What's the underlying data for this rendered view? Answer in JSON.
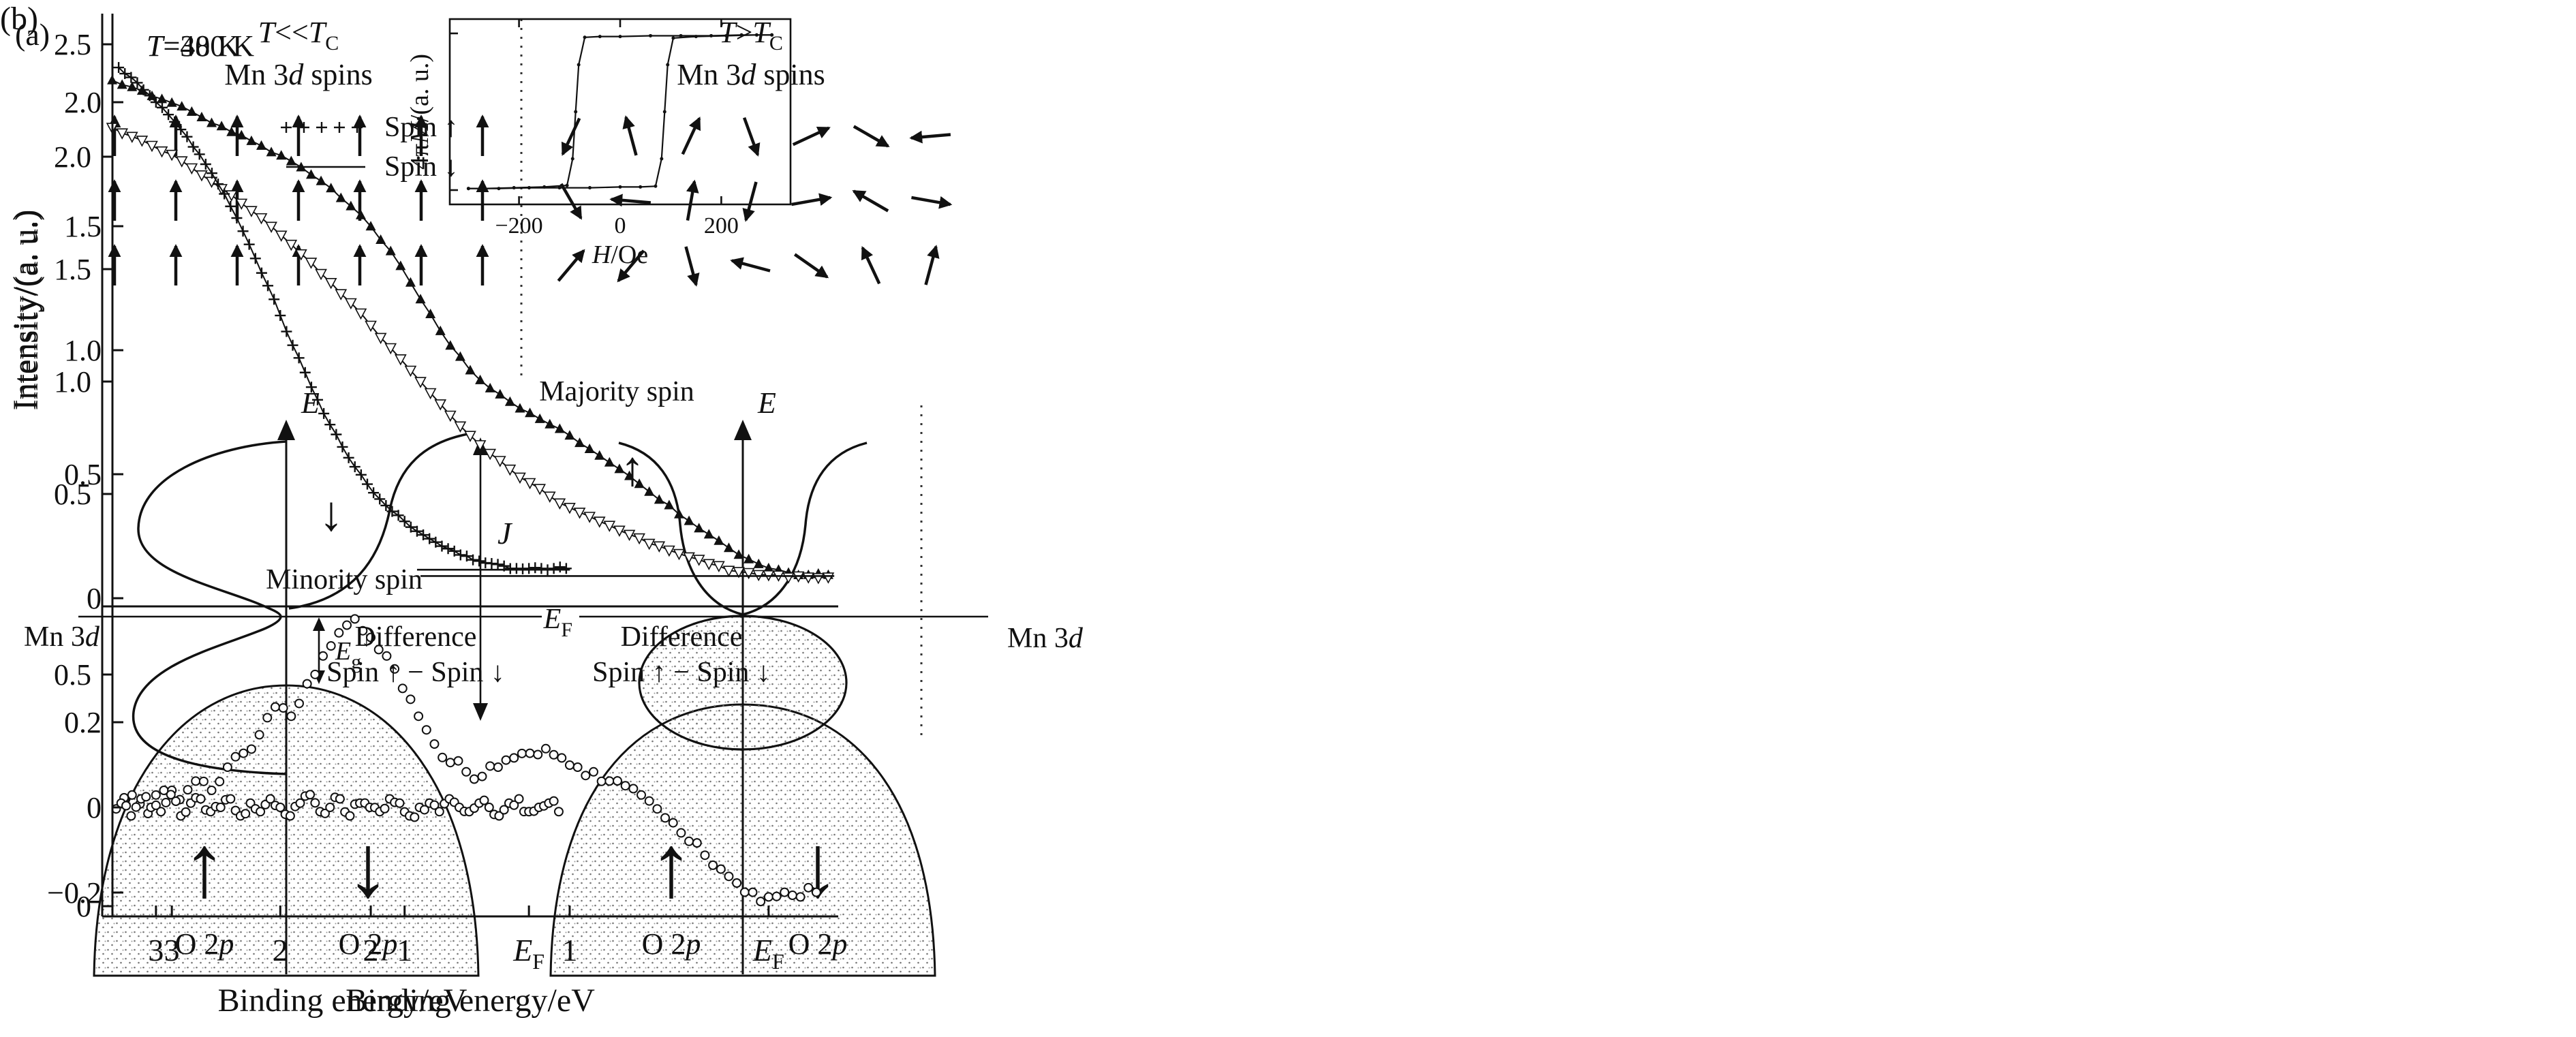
{
  "figure": {
    "background": "#ffffff",
    "ink": "#111111"
  },
  "panel_a": {
    "label": "(a)",
    "up_arrow": "↑",
    "down_arrow": "↓",
    "left_block": {
      "t1": "T",
      "op": "<<",
      "t2": "T",
      "sub": "C",
      "sub2_pre": "Mn 3",
      "sub2_d": "d",
      "sub2_post": " spins"
    },
    "right_block": {
      "t1": "T",
      "op": ">",
      "t2": "T",
      "sub": "C",
      "sub2_pre": "Mn 3",
      "sub2_d": "d",
      "sub2_post": " spins"
    },
    "lattice_left_angles": [
      0,
      0,
      0,
      0,
      0,
      0,
      0,
      0,
      0,
      0,
      0,
      0,
      0,
      0,
      0,
      0,
      0,
      0,
      0,
      0,
      0
    ],
    "lattice_right_angles": [
      205,
      345,
      25,
      160,
      65,
      120,
      265,
      150,
      275,
      10,
      195,
      80,
      300,
      100,
      40,
      220,
      165,
      285,
      125,
      335,
      15
    ],
    "dos_left": {
      "E": "E",
      "band_pre": "Mn 3",
      "band_d": "d",
      "gap_E": "E",
      "gap_sub": "g",
      "gap_sup": "↓",
      "J": "J",
      "o2p_pre": "O 2",
      "o2p_p": "p"
    },
    "dos_right": {
      "E": "E",
      "ef_E": "E",
      "ef_sub": "F",
      "band_pre": "Mn 3",
      "band_d": "d",
      "o2p_pre": "O 2",
      "o2p_p": "p"
    }
  },
  "panel_b": {
    "label": "(b)"
  },
  "chart_data": [
    {
      "type": "line",
      "title": {
        "sym": "T",
        "rest": "=40 K"
      },
      "xlabel": "Binding energy/eV",
      "ylabel": "Intensity/(a. u.)",
      "x_axis": {
        "range": [
          3.35,
          -0.35
        ],
        "ticks": [
          {
            "v": 3,
            "label": "3"
          },
          {
            "v": 2,
            "label": "2"
          },
          {
            "v": 1,
            "label": "1"
          },
          {
            "v": 0,
            "label": "E_F"
          }
        ]
      },
      "main_panel": {
        "ylim": [
          0,
          2.63
        ],
        "y_ticks": [
          {
            "v": 0.5,
            "label": "0.5"
          },
          {
            "v": 1.0,
            "label": "1.0"
          },
          {
            "v": 1.5,
            "label": "1.5"
          },
          {
            "v": 2.0,
            "label": "2.0"
          },
          {
            "v": 2.5,
            "label": "2.5"
          }
        ],
        "series": [
          {
            "name": "Majority spin (Spin ↑)",
            "marker": "triangle-filled",
            "x_start": 3.3,
            "x_step": -0.1,
            "y": [
              2.34,
              2.31,
              2.27,
              2.24,
              2.2,
              2.15,
              2.11,
              2.07,
              2.02,
              1.98,
              1.92,
              1.86,
              1.78,
              1.69,
              1.58,
              1.44,
              1.3,
              1.16,
              1.05,
              0.97,
              0.91,
              0.86,
              0.81,
              0.76,
              0.7,
              0.64,
              0.58,
              0.51,
              0.45,
              0.38,
              0.32,
              0.26,
              0.21,
              0.17,
              0.15,
              0.14,
              0.14
            ]
          },
          {
            "name": "Minority spin (Spin ↓)",
            "marker": "triangle-open",
            "x_start": 3.3,
            "x_step": -0.1,
            "y": [
              2.13,
              2.09,
              2.05,
              2.01,
              1.95,
              1.89,
              1.83,
              1.76,
              1.69,
              1.61,
              1.53,
              1.44,
              1.35,
              1.25,
              1.15,
              1.05,
              0.95,
              0.85,
              0.76,
              0.68,
              0.61,
              0.55,
              0.49,
              0.44,
              0.4,
              0.36,
              0.32,
              0.28,
              0.25,
              0.22,
              0.19,
              0.16,
              0.15,
              0.14,
              0.13,
              0.13,
              0.13
            ]
          }
        ],
        "baseline": {
          "x": [
            1.75,
            -0.33
          ],
          "y": 0.135
        },
        "annotations": [
          {
            "text": "Majority spin",
            "arrow": "↑"
          },
          {
            "text": "Minority spin",
            "arrow": "↓"
          }
        ]
      },
      "inset": {
        "ylabel": {
          "pre": "4π",
          "sym": "M",
          "rest": "/(a. u.)"
        },
        "xlabel": {
          "sym": "H",
          "rest": "/Oe"
        },
        "xlim": [
          -330,
          330
        ],
        "ylim": [
          -1.15,
          1.15
        ],
        "x_ticks": [
          {
            "v": -200,
            "label": "−200"
          },
          {
            "v": 0,
            "label": "0"
          },
          {
            "v": 200,
            "label": "200"
          }
        ],
        "loop_descending": [
          [
            300,
            0.98
          ],
          [
            240,
            0.98
          ],
          [
            180,
            0.97
          ],
          [
            120,
            0.97
          ],
          [
            60,
            0.97
          ],
          [
            0,
            0.96
          ],
          [
            -40,
            0.96
          ],
          [
            -70,
            0.95
          ],
          [
            -82,
            0.6
          ],
          [
            -88,
            0
          ],
          [
            -94,
            -0.6
          ],
          [
            -105,
            -0.94
          ],
          [
            -150,
            -0.96
          ],
          [
            -210,
            -0.97
          ],
          [
            -270,
            -0.98
          ],
          [
            -300,
            -0.98
          ]
        ],
        "loop_ascending": [
          [
            -300,
            -0.98
          ],
          [
            -240,
            -0.98
          ],
          [
            -180,
            -0.97
          ],
          [
            -120,
            -0.97
          ],
          [
            -60,
            -0.97
          ],
          [
            0,
            -0.96
          ],
          [
            40,
            -0.96
          ],
          [
            70,
            -0.95
          ],
          [
            82,
            -0.6
          ],
          [
            88,
            0
          ],
          [
            94,
            0.6
          ],
          [
            105,
            0.94
          ],
          [
            150,
            0.96
          ],
          [
            210,
            0.97
          ],
          [
            270,
            0.98
          ],
          [
            300,
            0.98
          ]
        ]
      },
      "difference_panel": {
        "label_line1": "Difference",
        "label_line2": "Spin ↑ − Spin ↓",
        "y_ticks": [
          {
            "v": 0,
            "label": "0"
          },
          {
            "v": 0.5,
            "label": "0.5"
          }
        ],
        "marker": "circle-open",
        "x_start": 3.28,
        "x_step": -0.08,
        "y": [
          0.21,
          0.24,
          0.2,
          0.25,
          0.23,
          0.27,
          0.25,
          0.3,
          0.33,
          0.37,
          0.43,
          0.41,
          0.48,
          0.54,
          0.59,
          0.62,
          0.58,
          0.54,
          0.47,
          0.41,
          0.35,
          0.31,
          0.29,
          0.28,
          0.3,
          0.32,
          0.33,
          0.34,
          0.32,
          0.3,
          0.29,
          0.27,
          0.26,
          0.24,
          0.21,
          0.18,
          0.14,
          0.11,
          0.08,
          0.05,
          0.03,
          0.02,
          0.03,
          0.02,
          0.03
        ]
      }
    },
    {
      "type": "line",
      "title": {
        "sym": "T",
        "rest": "=380 K"
      },
      "xlabel": "Binding energy/eV",
      "ylabel": "Intensity/(a. u.)",
      "x_axis": {
        "range": [
          3.35,
          -0.35
        ],
        "ticks": [
          {
            "v": 3,
            "label": "3"
          },
          {
            "v": 2,
            "label": "2"
          },
          {
            "v": 1,
            "label": "1"
          },
          {
            "v": 0,
            "label": "E_F"
          }
        ]
      },
      "main_panel": {
        "ylim": [
          0,
          2.36
        ],
        "y_ticks": [
          {
            "v": 0,
            "label": "0"
          },
          {
            "v": 0.5,
            "label": "0.5"
          },
          {
            "v": 1.0,
            "label": "1.0"
          },
          {
            "v": 1.5,
            "label": "1.5"
          },
          {
            "v": 2.0,
            "label": "2.0"
          }
        ],
        "series": [
          {
            "name": "Spin ↑",
            "marker": "plus",
            "x_start": 3.3,
            "x_step": -0.1,
            "y": [
              2.14,
              2.1,
              2.05,
              2.0,
              1.95,
              1.89,
              1.82,
              1.75,
              1.67,
              1.58,
              1.48,
              1.37,
              1.26,
              1.14,
              1.02,
              0.91,
              0.8,
              0.7,
              0.61,
              0.53,
              0.46,
              0.4,
              0.35,
              0.31,
              0.27,
              0.24,
              0.21,
              0.19,
              0.17,
              0.15,
              0.14,
              0.13,
              0.12,
              0.12,
              0.12,
              0.12,
              0.12
            ]
          }
        ],
        "baseline": {
          "x": [
            0.9,
            -0.33
          ],
          "y": 0.115
        },
        "legend": [
          {
            "marker": "plus",
            "label": "Spin ↑"
          },
          {
            "marker": "line",
            "label": "Spin ↓"
          }
        ],
        "annotations": []
      },
      "difference_panel": {
        "label_line1": "Difference",
        "label_line2": "Spin ↑ − Spin ↓",
        "y_ticks": [
          {
            "v": -0.2,
            "label": "−0.2"
          },
          {
            "v": 0,
            "label": "0"
          },
          {
            "v": 0.2,
            "label": "0.2"
          }
        ],
        "marker": "circle-open",
        "x_start": 3.28,
        "x_step": -0.08,
        "y": [
          0.01,
          -0.02,
          0.02,
          0.0,
          -0.01,
          0.03,
          -0.02,
          0.01,
          0.02,
          -0.01,
          0.0,
          0.02,
          -0.02,
          0.01,
          -0.01,
          0.02,
          0.0,
          -0.02,
          0.01,
          0.03,
          -0.01,
          0.0,
          0.02,
          -0.02,
          0.01,
          0.0,
          -0.01,
          0.02,
          0.01,
          -0.02,
          0.0,
          0.01,
          -0.01,
          0.02,
          0.0,
          -0.01,
          0.01,
          0.0,
          -0.02,
          0.01,
          0.02,
          -0.01,
          0.0,
          0.01,
          -0.01
        ]
      }
    }
  ]
}
